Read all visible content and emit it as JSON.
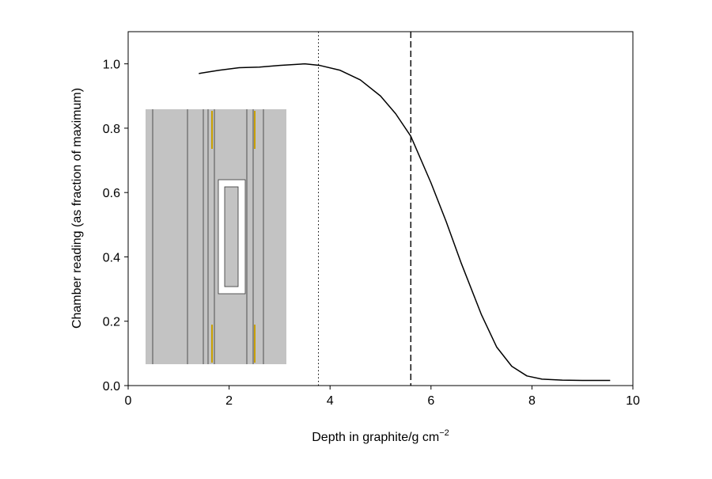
{
  "chart_data": {
    "type": "line",
    "xlabel": "Depth in graphite/g cm",
    "xlabel_superscript": "−2",
    "ylabel": "Chamber reading (as fraction of maximum)",
    "x": [
      1.4,
      1.8,
      2.2,
      2.6,
      3.0,
      3.5,
      3.8,
      4.2,
      4.6,
      5.0,
      5.3,
      5.6,
      6.0,
      6.3,
      6.6,
      7.0,
      7.3,
      7.6,
      7.9,
      8.2,
      8.6,
      9.0,
      9.55
    ],
    "series": [
      {
        "color": "#000000",
        "values": [
          0.97,
          0.98,
          0.988,
          0.99,
          0.995,
          1.0,
          0.995,
          0.98,
          0.95,
          0.9,
          0.845,
          0.775,
          0.63,
          0.51,
          0.38,
          0.22,
          0.12,
          0.06,
          0.03,
          0.02,
          0.017,
          0.016,
          0.016
        ]
      }
    ],
    "vlines": [
      {
        "x": 3.77,
        "style": "dotted"
      },
      {
        "x": 5.6,
        "style": "dashed"
      }
    ],
    "xlim": [
      0,
      10
    ],
    "ylim": [
      0,
      1.1
    ],
    "xticks": [
      0,
      2,
      4,
      6,
      8,
      10
    ],
    "yticks": [
      {
        "value": 0,
        "label": "0.0"
      },
      {
        "value": 0.2,
        "label": "0.2"
      },
      {
        "value": 0.4,
        "label": "0.4"
      },
      {
        "value": 0.6,
        "label": "0.6"
      },
      {
        "value": 0.8,
        "label": "0.8"
      },
      {
        "value": 1.0,
        "label": "1.0"
      }
    ],
    "grid": false
  }
}
